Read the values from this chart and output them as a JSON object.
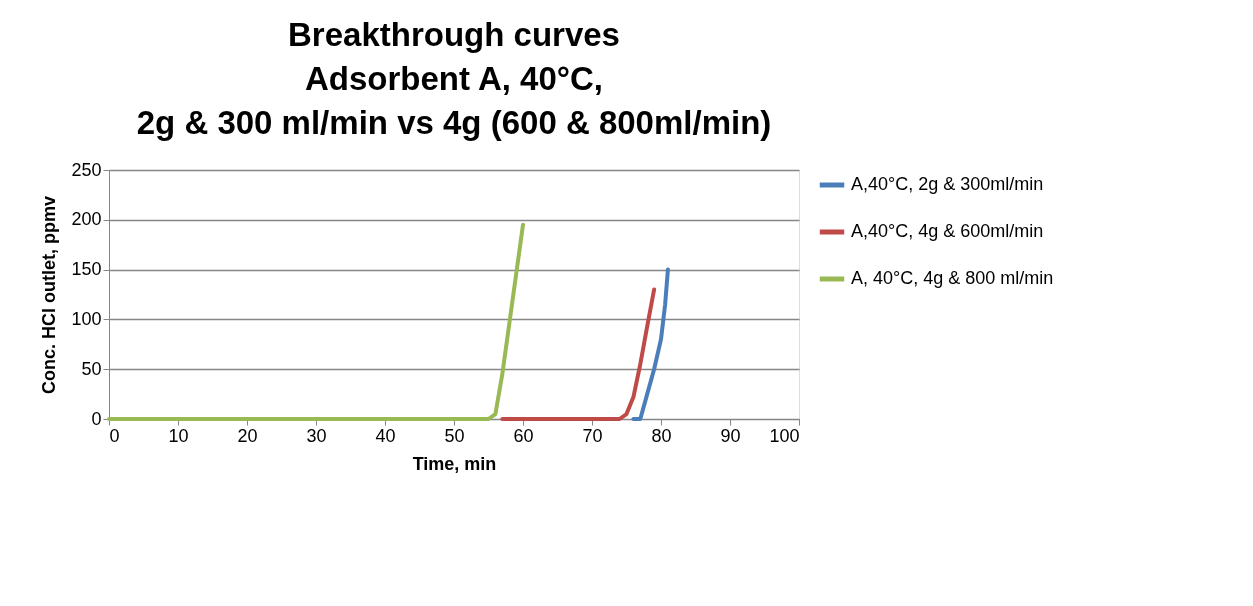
{
  "chart_data": {
    "type": "line",
    "title": [
      "Breakthrough curves",
      "Adsorbent A, 40°C,",
      "2g & 300 ml/min vs 4g (600 & 800ml/min)"
    ],
    "xlabel": "Time, min",
    "ylabel": "Conc. HCl outlet, ppmv",
    "xlim": [
      0,
      100
    ],
    "xticks": [
      0,
      10,
      20,
      30,
      40,
      50,
      60,
      70,
      80,
      90,
      100
    ],
    "ylim": [
      0,
      250
    ],
    "yticks": [
      0,
      50,
      100,
      150,
      200,
      250
    ],
    "grid": "y",
    "legend": "right",
    "marker": "none",
    "line_style": "solid",
    "series": [
      {
        "name": "A,40°C, 2g & 300ml/min",
        "color": "#4a7ebb",
        "x": [
          76,
          77,
          78,
          79,
          80,
          80.6,
          81
        ],
        "values": [
          0,
          0,
          25,
          50,
          80,
          115,
          150
        ]
      },
      {
        "name": "A,40°C, 4g & 600ml/min",
        "color": "#be4b48",
        "x": [
          57,
          60,
          70,
          74,
          75,
          76,
          77,
          78,
          79
        ],
        "values": [
          0,
          0,
          0,
          0,
          5,
          22,
          55,
          93,
          130
        ]
      },
      {
        "name": "A, 40°C, 4g & 800 ml/min",
        "color": "#98b954",
        "x": [
          0,
          10,
          20,
          30,
          40,
          50,
          55,
          56,
          57,
          58,
          59,
          60
        ],
        "values": [
          0,
          0,
          0,
          0,
          0,
          0,
          0,
          5,
          45,
          95,
          145,
          195
        ]
      }
    ]
  }
}
